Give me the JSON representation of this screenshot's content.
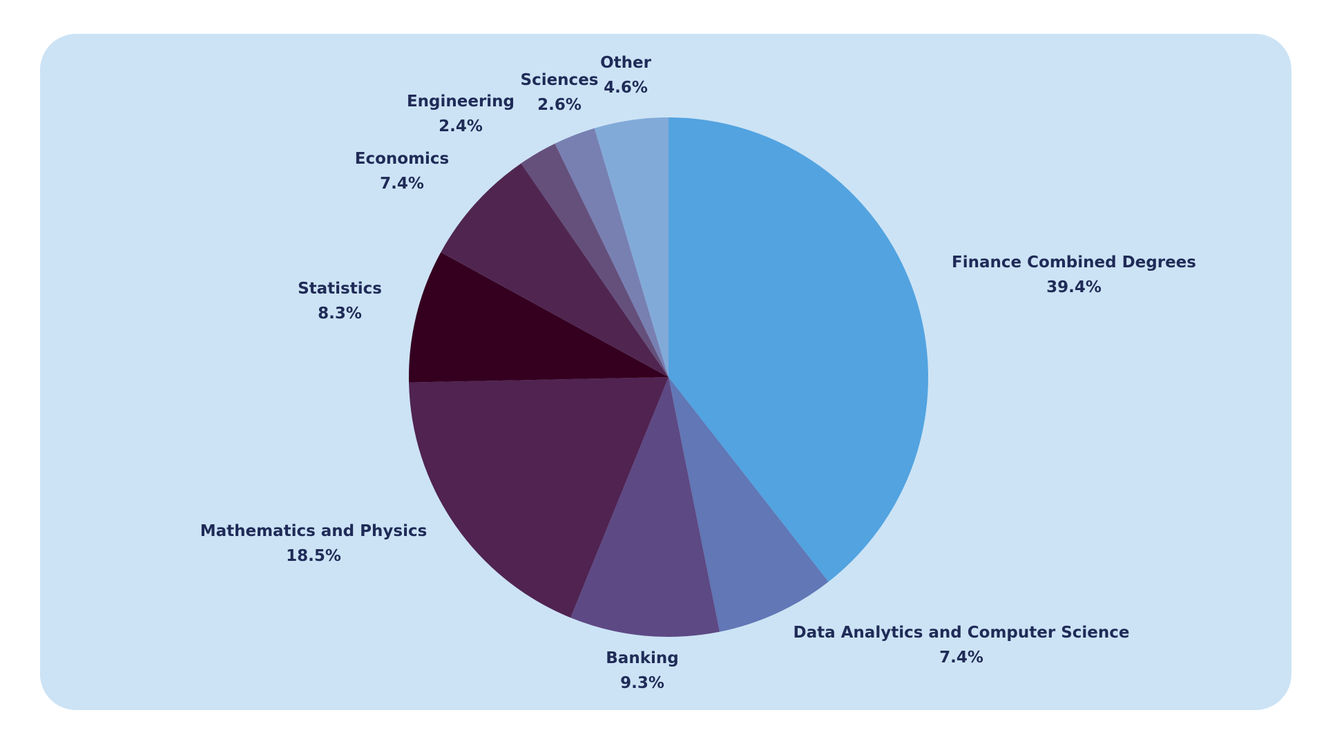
{
  "chart_data": {
    "type": "pie",
    "title": "",
    "start_angle_deg": 0,
    "direction": "clockwise",
    "slices": [
      {
        "label": "Finance Combined Degrees",
        "value": 39.4,
        "value_label": "39.4%",
        "color": "#52a3e0"
      },
      {
        "label": "Data Analytics and Computer Science",
        "value": 7.4,
        "value_label": "7.4%",
        "color": "#6177b6"
      },
      {
        "label": "Banking",
        "value": 9.3,
        "value_label": "9.3%",
        "color": "#5d4984"
      },
      {
        "label": "Mathematics and Physics",
        "value": 18.5,
        "value_label": "18.5%",
        "color": "#502351"
      },
      {
        "label": "Statistics",
        "value": 8.3,
        "value_label": "8.3%",
        "color": "#350020"
      },
      {
        "label": "Economics",
        "value": 7.4,
        "value_label": "7.4%",
        "color": "#502650"
      },
      {
        "label": "Engineering",
        "value": 2.4,
        "value_label": "2.4%",
        "color": "#65507c"
      },
      {
        "label": "Sciences",
        "value": 2.6,
        "value_label": "2.6%",
        "color": "#7880b2"
      },
      {
        "label": "Other",
        "value": 4.6,
        "value_label": "4.6%",
        "color": "#82aad8"
      }
    ]
  },
  "colors": {
    "panel_background": "#cce3f5",
    "label_text": "#1f2b57",
    "page_background": "#ffffff"
  }
}
